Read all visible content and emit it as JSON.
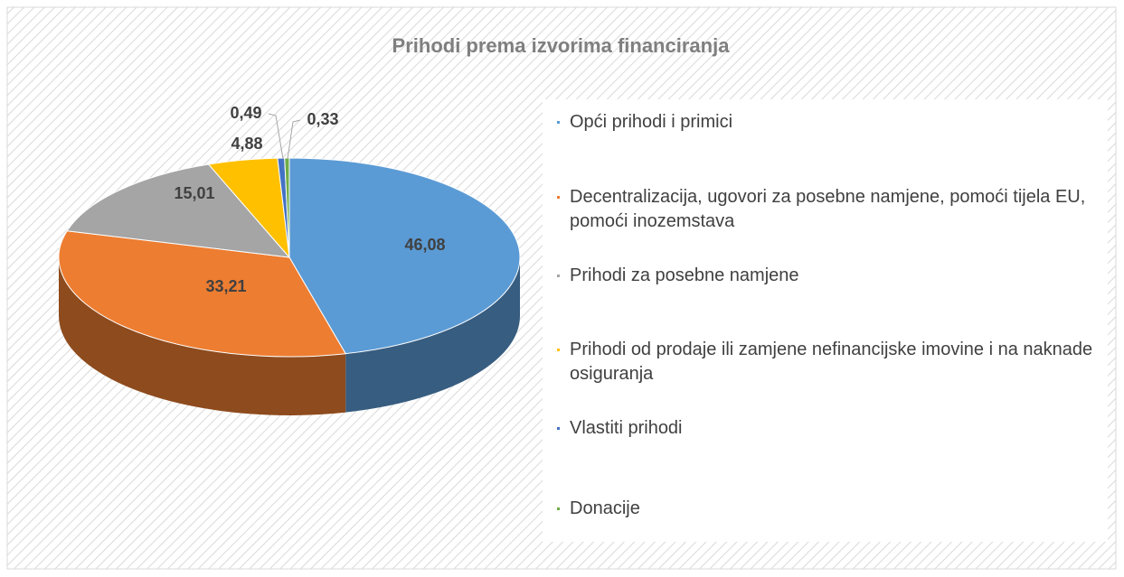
{
  "chart_data": {
    "type": "pie",
    "title": "Prihodi prema izvorima financiranja",
    "categories": [
      "Opći prihodi i primici",
      "Decentralizacija, ugovori za posebne namjene, pomoći tijela EU, pomoći inozemstava",
      "Prihodi za posebne namjene",
      "Prihodi od prodaje ili zamjene nefinancijske imovine i na naknade osiguranja",
      "Vlastiti prihodi",
      "Donacije"
    ],
    "values": [
      46.08,
      33.21,
      15.01,
      4.88,
      0.49,
      0.33
    ],
    "value_labels": [
      "46,08",
      "33,21",
      "15,01",
      "4,88",
      "0,49",
      "0,33"
    ],
    "colors": [
      "#5b9bd5",
      "#ed7d31",
      "#a5a5a5",
      "#ffc000",
      "#4472c4",
      "#70ad47"
    ],
    "legend": "right"
  }
}
